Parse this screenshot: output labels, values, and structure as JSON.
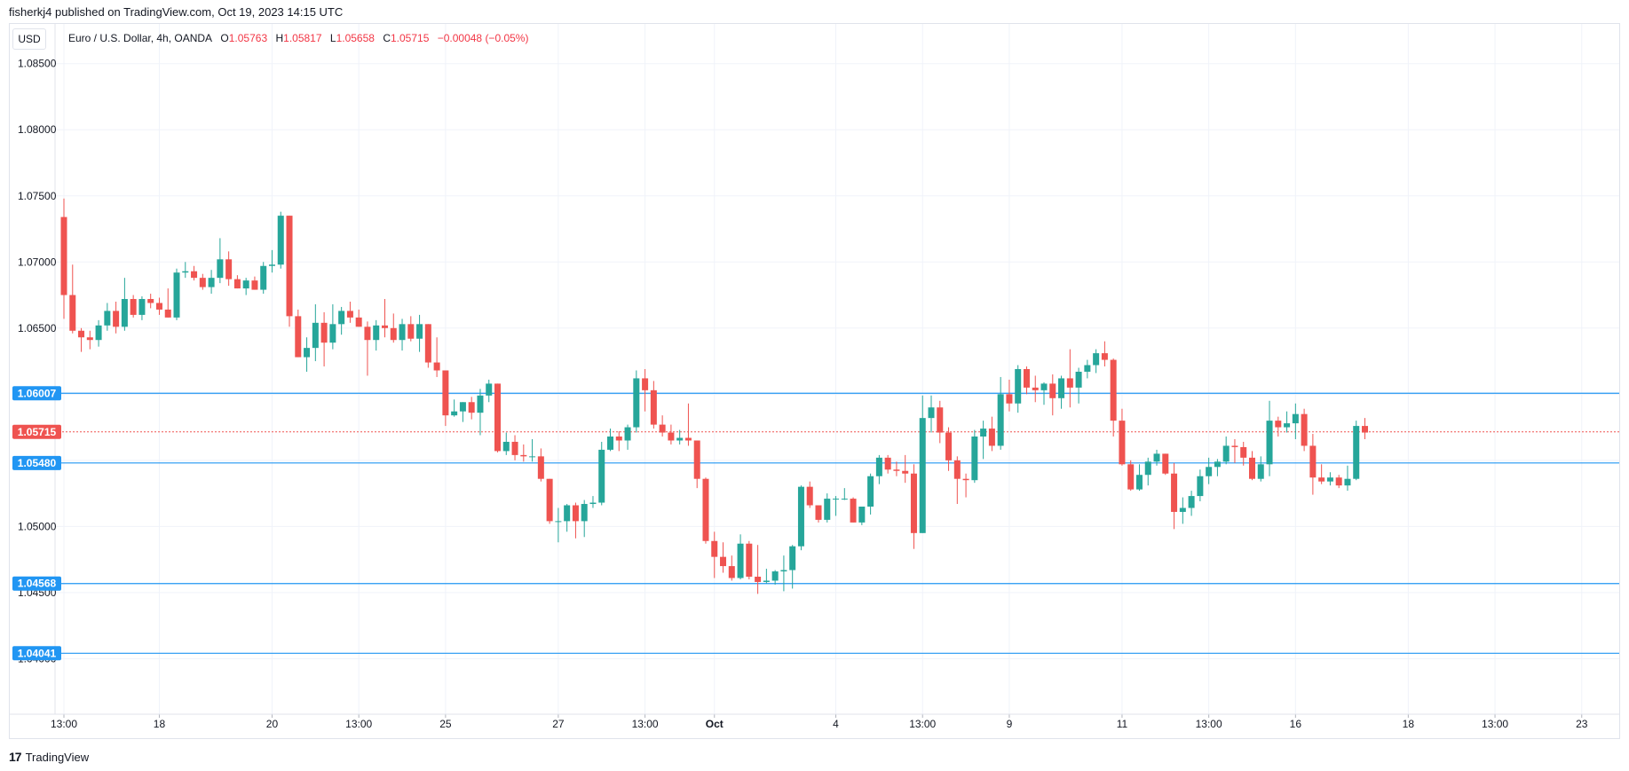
{
  "header": {
    "published_line": "fisherkj4 published on TradingView.com, Oct 19, 2023 14:15 UTC"
  },
  "currency_button": "USD",
  "legend": {
    "symbol": "Euro / U.S. Dollar, 4h, OANDA",
    "open_label": "O",
    "open_value": "1.05763",
    "high_label": "H",
    "high_value": "1.05817",
    "low_label": "L",
    "low_value": "1.05658",
    "close_label": "C",
    "close_value": "1.05715",
    "change": "−0.00048 (−0.05%)"
  },
  "footer": {
    "brand": "TradingView",
    "logo_glyph": "17"
  },
  "colors": {
    "up": "#26a69a",
    "down": "#ef5350",
    "level_line": "#2196f3",
    "grid": "#f0f3fa",
    "axis_text": "#131722",
    "label_bg": "#2196f3",
    "price_label_bg": "#ef5350"
  },
  "chart_data": {
    "type": "candlestick",
    "symbol": "Euro / U.S. Dollar, 4h, OANDA",
    "y_axis_position": "left",
    "ylim": [
      1.0358,
      1.088
    ],
    "y_ticks": [
      1.085,
      1.08,
      1.075,
      1.07,
      1.065,
      1.06,
      1.055,
      1.05,
      1.045,
      1.04
    ],
    "y_tick_labels": [
      "1.08500",
      "1.08000",
      "1.07500",
      "1.07000",
      "1.06500",
      "1.06000",
      "1.05500",
      "1.05000",
      "1.04500",
      "1.04000"
    ],
    "x_ticks": [
      {
        "label": "13:00",
        "i": 0
      },
      {
        "label": "18",
        "i": 11
      },
      {
        "label": "20",
        "i": 24
      },
      {
        "label": "13:00",
        "i": 34
      },
      {
        "label": "25",
        "i": 44
      },
      {
        "label": "27",
        "i": 57
      },
      {
        "label": "13:00",
        "i": 67
      },
      {
        "label": "Oct",
        "i": 75
      },
      {
        "label": "4",
        "i": 89
      },
      {
        "label": "13:00",
        "i": 99
      },
      {
        "label": "9",
        "i": 109
      },
      {
        "label": "11",
        "i": 122
      },
      {
        "label": "13:00",
        "i": 132
      },
      {
        "label": "16",
        "i": 142
      },
      {
        "label": "18",
        "i": 155
      },
      {
        "label": "13:00",
        "i": 165
      },
      {
        "label": "23",
        "i": 175
      }
    ],
    "grid": true,
    "horizontal_levels": [
      {
        "value": 1.06007,
        "label": "1.06007"
      },
      {
        "value": 1.0548,
        "label": "1.05480"
      },
      {
        "value": 1.04568,
        "label": "1.04568"
      },
      {
        "value": 1.04041,
        "label": "1.04041"
      }
    ],
    "last_price": {
      "value": 1.05715,
      "label": "1.05715"
    },
    "candles": [
      [
        1.0734,
        1.0748,
        1.0657,
        1.0675
      ],
      [
        1.0675,
        1.0698,
        1.0646,
        1.0648
      ],
      [
        1.0648,
        1.065,
        1.0632,
        1.0643
      ],
      [
        1.0643,
        1.0648,
        1.0634,
        1.0641
      ],
      [
        1.0641,
        1.0656,
        1.0636,
        1.0652
      ],
      [
        1.0652,
        1.0669,
        1.0648,
        1.0663
      ],
      [
        1.0663,
        1.067,
        1.0646,
        1.0651
      ],
      [
        1.0651,
        1.0688,
        1.0648,
        1.0672
      ],
      [
        1.0672,
        1.0675,
        1.0658,
        1.066
      ],
      [
        1.066,
        1.0674,
        1.0656,
        1.0672
      ],
      [
        1.0672,
        1.0676,
        1.0665,
        1.0669
      ],
      [
        1.0669,
        1.0673,
        1.066,
        1.0664
      ],
      [
        1.0664,
        1.068,
        1.0658,
        1.0658
      ],
      [
        1.0658,
        1.0695,
        1.0656,
        1.0692
      ],
      [
        1.0692,
        1.07,
        1.0688,
        1.0693
      ],
      [
        1.0693,
        1.0697,
        1.0686,
        1.0688
      ],
      [
        1.0688,
        1.0691,
        1.0679,
        1.0681
      ],
      [
        1.0681,
        1.0694,
        1.0676,
        1.0688
      ],
      [
        1.0688,
        1.0718,
        1.0684,
        1.0702
      ],
      [
        1.0702,
        1.0708,
        1.0682,
        1.0687
      ],
      [
        1.0687,
        1.069,
        1.068,
        1.068
      ],
      [
        1.068,
        1.0688,
        1.0675,
        1.0686
      ],
      [
        1.0686,
        1.0689,
        1.0679,
        1.0679
      ],
      [
        1.0679,
        1.07,
        1.0676,
        1.0697
      ],
      [
        1.0697,
        1.0709,
        1.0692,
        1.0698
      ],
      [
        1.0698,
        1.0738,
        1.0695,
        1.0735
      ],
      [
        1.0735,
        1.0735,
        1.0651,
        1.0659
      ],
      [
        1.0659,
        1.0664,
        1.0628,
        1.0628
      ],
      [
        1.0628,
        1.0643,
        1.0617,
        1.0635
      ],
      [
        1.0635,
        1.0668,
        1.0625,
        1.0654
      ],
      [
        1.0654,
        1.0662,
        1.0621,
        1.0639
      ],
      [
        1.0639,
        1.0668,
        1.0634,
        1.0653
      ],
      [
        1.0653,
        1.0666,
        1.0645,
        1.0663
      ],
      [
        1.0663,
        1.067,
        1.0654,
        1.0658
      ],
      [
        1.0658,
        1.0664,
        1.0651,
        1.0651
      ],
      [
        1.0651,
        1.0655,
        1.0614,
        1.0641
      ],
      [
        1.0641,
        1.0656,
        1.0633,
        1.0652
      ],
      [
        1.0652,
        1.0672,
        1.0643,
        1.065
      ],
      [
        1.065,
        1.0661,
        1.0639,
        1.0641
      ],
      [
        1.0641,
        1.0657,
        1.0633,
        1.0653
      ],
      [
        1.0653,
        1.0659,
        1.064,
        1.0642
      ],
      [
        1.0642,
        1.066,
        1.0632,
        1.0653
      ],
      [
        1.0653,
        1.0653,
        1.062,
        1.0624
      ],
      [
        1.0624,
        1.0643,
        1.0613,
        1.0618
      ],
      [
        1.0618,
        1.0618,
        1.0576,
        1.0584
      ],
      [
        1.0584,
        1.0596,
        1.0583,
        1.0587
      ],
      [
        1.0587,
        1.0594,
        1.0579,
        1.0594
      ],
      [
        1.0594,
        1.0598,
        1.0581,
        1.0586
      ],
      [
        1.0586,
        1.0604,
        1.0569,
        1.0599
      ],
      [
        1.0599,
        1.0611,
        1.0594,
        1.0608
      ],
      [
        1.0608,
        1.0608,
        1.0556,
        1.0557
      ],
      [
        1.0557,
        1.0571,
        1.0554,
        1.0564
      ],
      [
        1.0564,
        1.0569,
        1.055,
        1.0554
      ],
      [
        1.0554,
        1.0562,
        1.0549,
        1.0553
      ],
      [
        1.0553,
        1.0566,
        1.0549,
        1.0553
      ],
      [
        1.0553,
        1.0559,
        1.0534,
        1.0536
      ],
      [
        1.0536,
        1.0536,
        1.0502,
        1.0504
      ],
      [
        1.0504,
        1.0514,
        1.0488,
        1.0504
      ],
      [
        1.0504,
        1.0517,
        1.0496,
        1.0516
      ],
      [
        1.0516,
        1.0518,
        1.0491,
        1.0504
      ],
      [
        1.0504,
        1.052,
        1.0492,
        1.0517
      ],
      [
        1.0517,
        1.0523,
        1.0514,
        1.0518
      ],
      [
        1.0518,
        1.0564,
        1.0516,
        1.0558
      ],
      [
        1.0558,
        1.0574,
        1.0557,
        1.0568
      ],
      [
        1.0568,
        1.0572,
        1.0557,
        1.0565
      ],
      [
        1.0565,
        1.0577,
        1.0558,
        1.0575
      ],
      [
        1.0575,
        1.0618,
        1.0571,
        1.0612
      ],
      [
        1.0612,
        1.0619,
        1.0587,
        1.0603
      ],
      [
        1.0603,
        1.061,
        1.0574,
        1.0577
      ],
      [
        1.0577,
        1.0584,
        1.0568,
        1.0571
      ],
      [
        1.0571,
        1.0577,
        1.0562,
        1.0565
      ],
      [
        1.0565,
        1.0573,
        1.0562,
        1.0567
      ],
      [
        1.0567,
        1.0593,
        1.0561,
        1.0565
      ],
      [
        1.0565,
        1.0565,
        1.0529,
        1.0536
      ],
      [
        1.0536,
        1.0537,
        1.0487,
        1.0489
      ],
      [
        1.0489,
        1.0496,
        1.0461,
        1.0477
      ],
      [
        1.0477,
        1.0488,
        1.0465,
        1.047
      ],
      [
        1.047,
        1.0478,
        1.0459,
        1.0461
      ],
      [
        1.0461,
        1.0494,
        1.046,
        1.0487
      ],
      [
        1.0487,
        1.0489,
        1.046,
        1.0462
      ],
      [
        1.0462,
        1.0486,
        1.0449,
        1.0458
      ],
      [
        1.0458,
        1.0468,
        1.0457,
        1.0459
      ],
      [
        1.0459,
        1.0467,
        1.0456,
        1.0466
      ],
      [
        1.0466,
        1.0478,
        1.0451,
        1.0467
      ],
      [
        1.0467,
        1.0486,
        1.0453,
        1.0485
      ],
      [
        1.0485,
        1.0531,
        1.0482,
        1.053
      ],
      [
        1.053,
        1.0534,
        1.0514,
        1.0516
      ],
      [
        1.0516,
        1.0516,
        1.0503,
        1.0505
      ],
      [
        1.0505,
        1.0525,
        1.0503,
        1.0521
      ],
      [
        1.0521,
        1.0523,
        1.0508,
        1.0521
      ],
      [
        1.0521,
        1.0529,
        1.052,
        1.0521
      ],
      [
        1.0521,
        1.0522,
        1.0503,
        1.0503
      ],
      [
        1.0503,
        1.0515,
        1.0501,
        1.0515
      ],
      [
        1.0515,
        1.054,
        1.0509,
        1.0538
      ],
      [
        1.0538,
        1.0554,
        1.0532,
        1.0552
      ],
      [
        1.0552,
        1.0554,
        1.054,
        1.0543
      ],
      [
        1.0543,
        1.0549,
        1.0538,
        1.0542
      ],
      [
        1.0542,
        1.0554,
        1.0533,
        1.054
      ],
      [
        1.054,
        1.0547,
        1.0483,
        1.0495
      ],
      [
        1.0495,
        1.0599,
        1.0495,
        1.0582
      ],
      [
        1.0582,
        1.0599,
        1.0571,
        1.059
      ],
      [
        1.059,
        1.0595,
        1.0563,
        1.0571
      ],
      [
        1.0571,
        1.0575,
        1.0542,
        1.055
      ],
      [
        1.055,
        1.0553,
        1.0517,
        1.0536
      ],
      [
        1.0536,
        1.054,
        1.0522,
        1.0535
      ],
      [
        1.0535,
        1.0573,
        1.0533,
        1.0568
      ],
      [
        1.0568,
        1.058,
        1.0551,
        1.0574
      ],
      [
        1.0574,
        1.0583,
        1.0557,
        1.0561
      ],
      [
        1.0561,
        1.0613,
        1.0558,
        1.06
      ],
      [
        1.06,
        1.0611,
        1.0587,
        1.0593
      ],
      [
        1.0593,
        1.0622,
        1.0586,
        1.0619
      ],
      [
        1.0619,
        1.0621,
        1.06,
        1.0605
      ],
      [
        1.0605,
        1.0614,
        1.0594,
        1.0603
      ],
      [
        1.0603,
        1.0609,
        1.0592,
        1.0608
      ],
      [
        1.0608,
        1.0615,
        1.0584,
        1.0597
      ],
      [
        1.0597,
        1.0614,
        1.0589,
        1.0612
      ],
      [
        1.0612,
        1.0634,
        1.059,
        1.0605
      ],
      [
        1.0605,
        1.062,
        1.0593,
        1.0617
      ],
      [
        1.0617,
        1.0626,
        1.0612,
        1.0622
      ],
      [
        1.0622,
        1.0634,
        1.0616,
        1.0631
      ],
      [
        1.0631,
        1.064,
        1.0621,
        1.0626
      ],
      [
        1.0626,
        1.0627,
        1.0568,
        1.058
      ],
      [
        1.058,
        1.0589,
        1.0546,
        1.0547
      ],
      [
        1.0547,
        1.055,
        1.0527,
        1.0528
      ],
      [
        1.0528,
        1.0547,
        1.0527,
        1.0539
      ],
      [
        1.0539,
        1.0552,
        1.0531,
        1.0549
      ],
      [
        1.0549,
        1.0558,
        1.0546,
        1.0555
      ],
      [
        1.0555,
        1.0555,
        1.0539,
        1.054
      ],
      [
        1.054,
        1.0548,
        1.0498,
        1.0511
      ],
      [
        1.0511,
        1.0522,
        1.0502,
        1.0514
      ],
      [
        1.0514,
        1.0527,
        1.0508,
        1.0523
      ],
      [
        1.0523,
        1.0543,
        1.0519,
        1.0538
      ],
      [
        1.0538,
        1.0552,
        1.0532,
        1.0545
      ],
      [
        1.0545,
        1.0551,
        1.0538,
        1.0549
      ],
      [
        1.0549,
        1.0568,
        1.0547,
        1.0561
      ],
      [
        1.0561,
        1.0566,
        1.0548,
        1.056
      ],
      [
        1.056,
        1.0564,
        1.0546,
        1.0552
      ],
      [
        1.0552,
        1.0557,
        1.0535,
        1.0536
      ],
      [
        1.0536,
        1.0553,
        1.0534,
        1.0547
      ],
      [
        1.0547,
        1.0595,
        1.0538,
        1.058
      ],
      [
        1.058,
        1.0583,
        1.0568,
        1.0575
      ],
      [
        1.0575,
        1.0587,
        1.0571,
        1.0578
      ],
      [
        1.0578,
        1.0593,
        1.0566,
        1.0585
      ],
      [
        1.0585,
        1.0589,
        1.0557,
        1.0561
      ],
      [
        1.0561,
        1.057,
        1.0524,
        1.0537
      ],
      [
        1.0537,
        1.0547,
        1.0532,
        1.0534
      ],
      [
        1.0534,
        1.0541,
        1.0531,
        1.0537
      ],
      [
        1.0537,
        1.0539,
        1.0529,
        1.0531
      ],
      [
        1.0531,
        1.0546,
        1.0527,
        1.0536
      ],
      [
        1.0536,
        1.058,
        1.0535,
        1.0576
      ],
      [
        1.0576,
        1.0582,
        1.0566,
        1.0571
      ]
    ]
  }
}
